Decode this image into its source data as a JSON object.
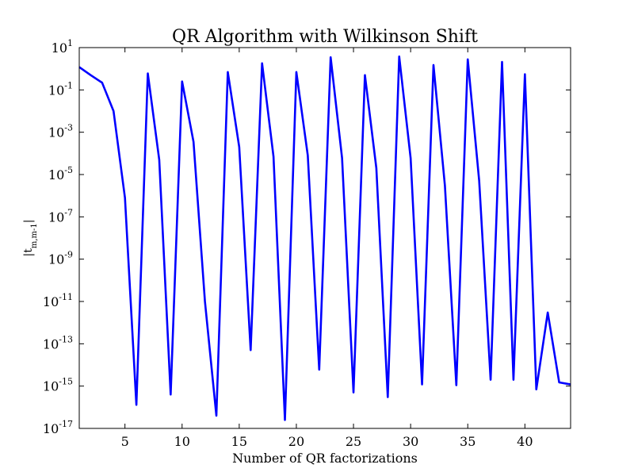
{
  "chart_data": {
    "type": "line",
    "title": "QR Algorithm with Wilkinson Shift",
    "xlabel": "Number of QR factorizations",
    "ylabel": "|t_{m,m-1}|",
    "xlim": [
      1,
      44
    ],
    "ylim": [
      1e-17,
      10
    ],
    "yscale": "log",
    "grid": false,
    "x_ticks": [
      5,
      10,
      15,
      20,
      25,
      30,
      35,
      40
    ],
    "y_ticks": [
      {
        "base": "10",
        "exp": "1"
      },
      {
        "base": "10",
        "exp": "-1"
      },
      {
        "base": "10",
        "exp": "-3"
      },
      {
        "base": "10",
        "exp": "-5"
      },
      {
        "base": "10",
        "exp": "-7"
      },
      {
        "base": "10",
        "exp": "-9"
      },
      {
        "base": "10",
        "exp": "-11"
      },
      {
        "base": "10",
        "exp": "-13"
      },
      {
        "base": "10",
        "exp": "-15"
      },
      {
        "base": "10",
        "exp": "-17"
      }
    ],
    "series": [
      {
        "color": "#0000ff",
        "x": [
          1,
          2,
          3,
          4,
          5,
          6,
          7,
          8,
          9,
          10,
          11,
          12,
          13,
          14,
          15,
          16,
          17,
          18,
          19,
          20,
          21,
          22,
          23,
          24,
          25,
          26,
          27,
          28,
          29,
          30,
          31,
          32,
          33,
          34,
          35,
          36,
          37,
          38,
          39,
          40,
          41,
          42,
          43,
          44
        ],
        "y": [
          1.2,
          0.5,
          0.22,
          0.01,
          8e-07,
          1.3e-16,
          0.6,
          5e-05,
          4e-16,
          0.25,
          0.00035,
          1e-11,
          4e-17,
          0.7,
          0.0002,
          5e-14,
          1.8,
          7e-05,
          2.5e-17,
          0.7,
          8e-05,
          6e-15,
          3.5,
          6e-05,
          5e-16,
          0.5,
          2e-05,
          3e-16,
          3.8,
          6e-05,
          1.2e-15,
          1.5,
          3e-06,
          1.1e-15,
          2.8,
          5e-06,
          2e-15,
          2.1,
          2e-15,
          0.55,
          7e-16,
          3e-12,
          1.5e-15,
          1.2e-15
        ]
      }
    ]
  }
}
